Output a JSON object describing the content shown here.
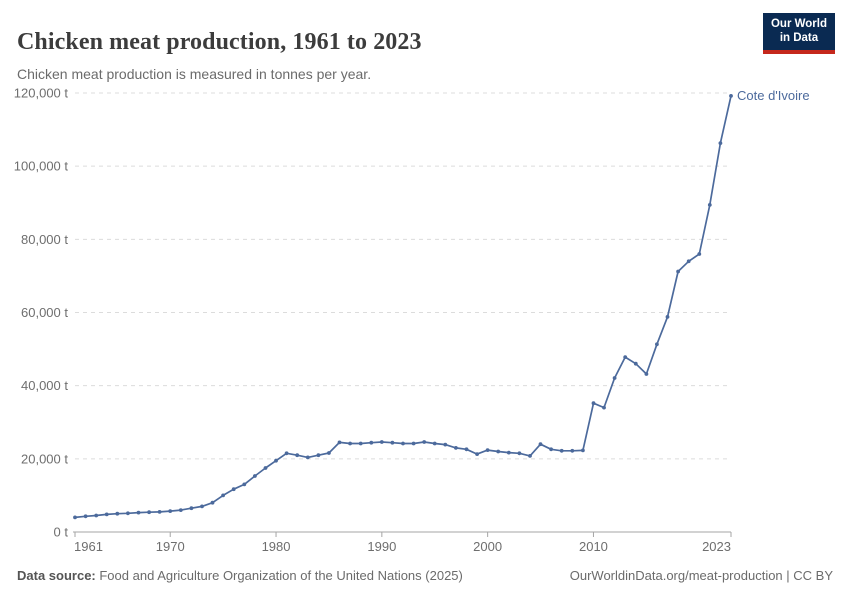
{
  "header": {
    "title": "Chicken meat production, 1961 to 2023",
    "subtitle": "Chicken meat production is measured in tonnes per year.",
    "logo": {
      "line1": "Our World",
      "line2": "in Data"
    }
  },
  "footer": {
    "source_label": "Data source:",
    "source_text": " Food and Agriculture Organization of the United Nations (2025)",
    "credit": "OurWorldinData.org/meat-production | CC BY"
  },
  "colors": {
    "series": "#4c6a9c",
    "grid": "#dcdcdc",
    "axis": "#a5a5a5",
    "tick_label": "#6e6e6e",
    "logo_bg": "#0a2a52",
    "logo_stripe": "#c5281c"
  },
  "chart_data": {
    "type": "line",
    "title": "Chicken meat production, 1961 to 2023",
    "subtitle": "Chicken meat production is measured in tonnes per year.",
    "unit": "tonnes per year",
    "xlim": [
      1961,
      2023
    ],
    "ylim": [
      0,
      120000
    ],
    "x_ticks": [
      1961,
      1970,
      1980,
      1990,
      2000,
      2010,
      2023
    ],
    "y_ticks": [
      0,
      20000,
      40000,
      60000,
      80000,
      100000,
      120000
    ],
    "y_tick_suffix": " t",
    "grid": "horizontal-dashed",
    "legend_position": "end-of-line",
    "series": [
      {
        "name": "Cote d'Ivoire",
        "color": "#4c6a9c",
        "x": [
          1961,
          1962,
          1963,
          1964,
          1965,
          1966,
          1967,
          1968,
          1969,
          1970,
          1971,
          1972,
          1973,
          1974,
          1975,
          1976,
          1977,
          1978,
          1979,
          1980,
          1981,
          1982,
          1983,
          1984,
          1985,
          1986,
          1987,
          1988,
          1989,
          1990,
          1991,
          1992,
          1993,
          1994,
          1995,
          1996,
          1997,
          1998,
          1999,
          2000,
          2001,
          2002,
          2003,
          2004,
          2005,
          2006,
          2007,
          2008,
          2009,
          2010,
          2011,
          2012,
          2013,
          2014,
          2015,
          2016,
          2017,
          2018,
          2019,
          2020,
          2021,
          2022,
          2023
        ],
        "values": [
          4000,
          4300,
          4500,
          4800,
          5000,
          5100,
          5300,
          5400,
          5500,
          5700,
          6000,
          6500,
          7000,
          8000,
          10000,
          11700,
          13000,
          15300,
          17500,
          19500,
          21500,
          21000,
          20400,
          21000,
          21600,
          24500,
          24200,
          24200,
          24400,
          24600,
          24400,
          24200,
          24200,
          24600,
          24200,
          23900,
          23000,
          22600,
          21300,
          22400,
          22000,
          21700,
          21500,
          20800,
          24000,
          22600,
          22200,
          22200,
          22300,
          35200,
          34000,
          42100,
          47800,
          46000,
          43200,
          51300,
          58800,
          71200,
          74000,
          76000,
          89400,
          106300,
          119200
        ]
      }
    ]
  }
}
